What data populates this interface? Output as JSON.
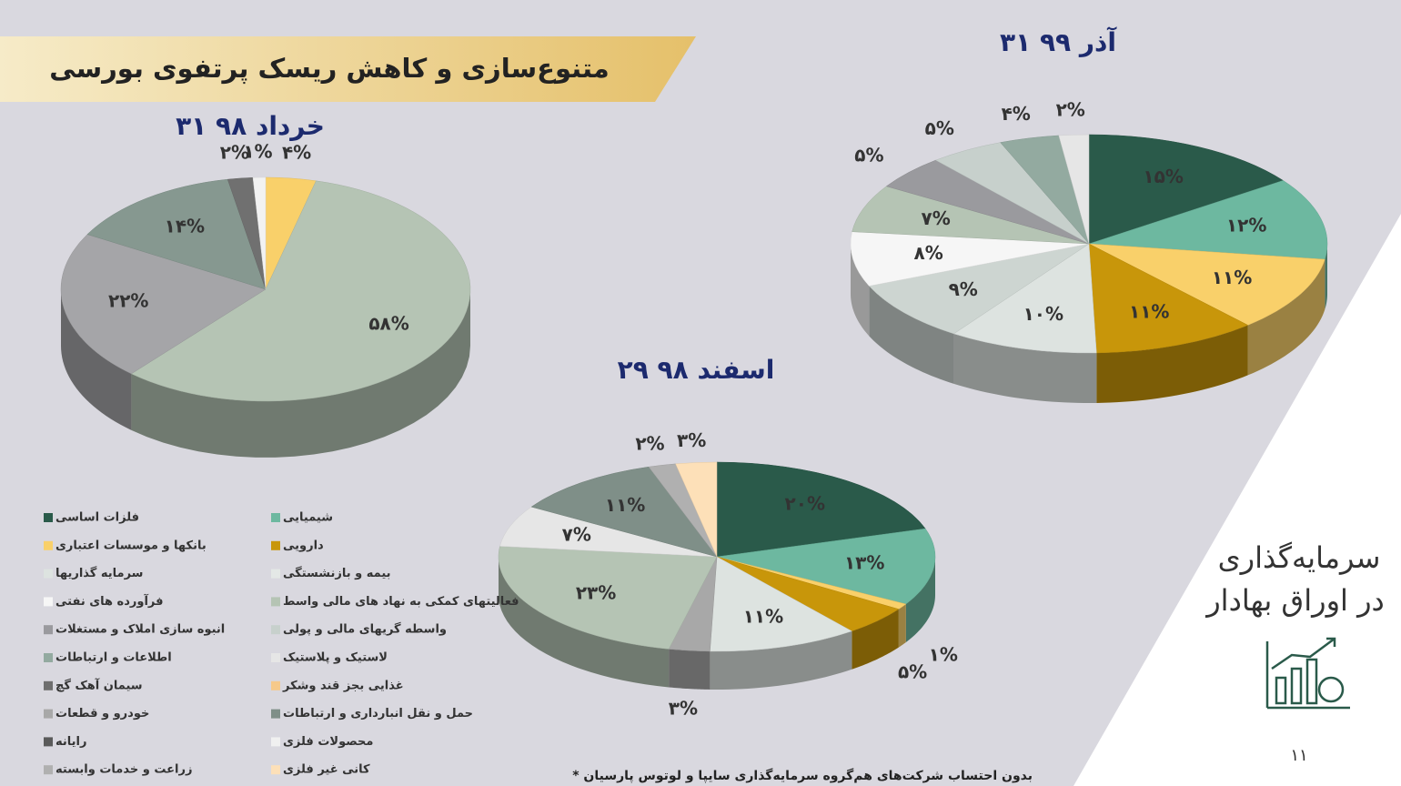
{
  "header": {
    "title": "متنوع‌سازی و کاهش ریسک پرتفوی بورسی"
  },
  "sidebar": {
    "line1": "سرمایه‌گذاری",
    "line2": "در اوراق بهادار",
    "page_number": "۱۱"
  },
  "footnote": "* بدون احتساب شرکت‌های هم‌گروه سرمایه‌گذاری سایپا و لوتوس پارسیان",
  "legend": {
    "items": [
      {
        "name": "فلزات اساسی",
        "color": "#2a5a4a"
      },
      {
        "name": "شیمیایی",
        "color": "#6db8a0"
      },
      {
        "name": "بانکها و موسسات اعتباری",
        "color": "#f9d06a"
      },
      {
        "name": "دارویی",
        "color": "#c8960a"
      },
      {
        "name": "سرمایه گذاریها",
        "color": "#dde3e0"
      },
      {
        "name": "بیمه و بازنشستگی",
        "color": "#e4e8e6"
      },
      {
        "name": "فرآورده های نفتی",
        "color": "#f6f6f6"
      },
      {
        "name": "فعالیتهای کمکی به نهاد های مالی واسط",
        "color": "#b5c4b4"
      },
      {
        "name": "انبوه سازی املاک و مستغلات",
        "color": "#9a9a9e"
      },
      {
        "name": "واسطه گریهای مالی و پولی",
        "color": "#c7d0cc"
      },
      {
        "name": "اطلاعات و ارتباطات",
        "color": "#93aaa0"
      },
      {
        "name": "لاستیک و پلاستیک",
        "color": "#e6e6e6"
      },
      {
        "name": "سیمان آهک گچ",
        "color": "#6e6e6e"
      },
      {
        "name": "غذایی بجز قند وشکر",
        "color": "#f6c98a"
      },
      {
        "name": "خودرو و قطعات",
        "color": "#a8a8a8"
      },
      {
        "name": "حمل و نقل انبارداری و ارتباطات",
        "color": "#7f8f88"
      },
      {
        "name": "رایانه",
        "color": "#5a5a5a"
      },
      {
        "name": "محصولات فلزی",
        "color": "#f0f0f0"
      },
      {
        "name": "زراعت و خدمات وابسته",
        "color": "#b0b0b0"
      },
      {
        "name": "کانی غیر فلزی",
        "color": "#fde0b8"
      }
    ]
  },
  "chart_data": [
    {
      "type": "pie",
      "title": "۳۱ خرداد ۹۸",
      "values": [
        4,
        58,
        22,
        14,
        2,
        1
      ],
      "value_labels": [
        "۴%",
        "۵۸%",
        "۲۲%",
        "۱۴%",
        "۲%",
        "۱%"
      ],
      "colors": [
        "#f9d06a",
        "#b5c4b4",
        "#a5a5a8",
        "#869890",
        "#707070",
        "#f2f2f2"
      ]
    },
    {
      "type": "pie",
      "title": "۲۹ اسفند ۹۸",
      "values": [
        20,
        13,
        1,
        5,
        11,
        3,
        23,
        7,
        11,
        2,
        3
      ],
      "value_labels": [
        "۲۰%",
        "۱۳%",
        "۱%",
        "۵%",
        "۱۱%",
        "۳%",
        "۲۳%",
        "۷%",
        "۱۱%",
        "۲%",
        "۳%"
      ],
      "colors": [
        "#2a5a4a",
        "#6db8a0",
        "#f9d06a",
        "#c8960a",
        "#dde3e0",
        "#a8a8a8",
        "#b5c4b4",
        "#e6e6e6",
        "#7f8f88",
        "#b0b0b0",
        "#fde0b8"
      ]
    },
    {
      "type": "pie",
      "title": "۳۱ آذر ۹۹",
      "values": [
        15,
        12,
        11,
        11,
        10,
        9,
        8,
        7,
        5,
        5,
        4,
        2
      ],
      "value_labels": [
        "۱۵%",
        "۱۲%",
        "۱۱%",
        "۱۱%",
        "۱۰%",
        "۹%",
        "۸%",
        "۷%",
        "۵%",
        "۵%",
        "۴%",
        "۲%"
      ],
      "colors": [
        "#2a5a4a",
        "#6db8a0",
        "#f9d06a",
        "#c8960a",
        "#dde3e0",
        "#cdd5d1",
        "#f6f6f6",
        "#b5c4b4",
        "#9a9a9e",
        "#c7d0cc",
        "#93aaa0",
        "#e6e6e6"
      ]
    }
  ]
}
